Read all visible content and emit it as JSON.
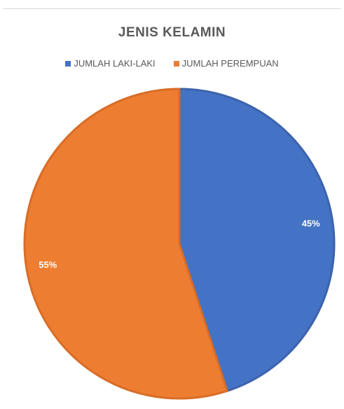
{
  "chart_data": {
    "type": "pie",
    "title": "JENIS KELAMIN",
    "legend_position": "top",
    "series": [
      {
        "name": "JUMLAH LAKI-LAKI",
        "value": 45,
        "label": "45%",
        "color": "#4472C4",
        "border": "#3c63ad"
      },
      {
        "name": "JUMLAH PEREMPUAN",
        "value": 55,
        "label": "55%",
        "color": "#ED7D31",
        "border": "#d86d27"
      }
    ]
  }
}
